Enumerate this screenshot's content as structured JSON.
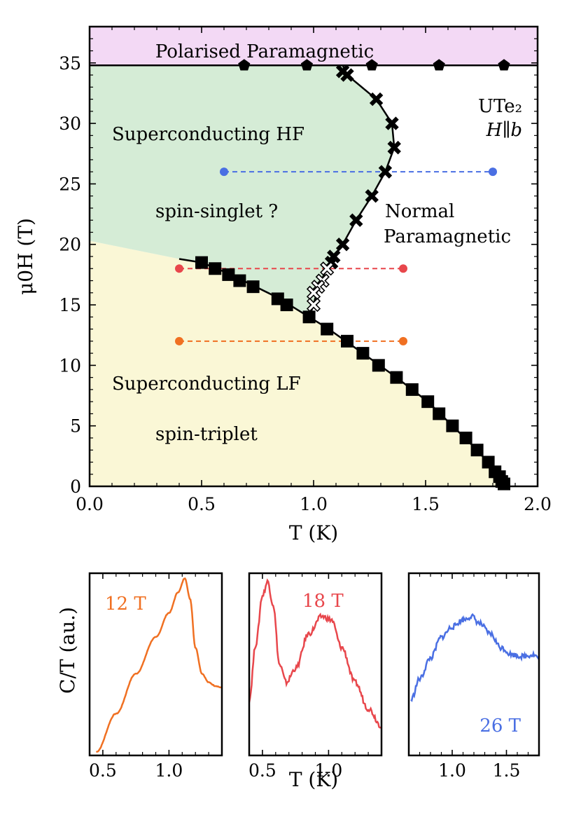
{
  "chart_data": [
    {
      "type": "scatter",
      "title": "",
      "xlabel": "T (K)",
      "ylabel": "μ0H (T)",
      "xlim": [
        0.0,
        2.0
      ],
      "ylim": [
        0,
        38
      ],
      "xticks": [
        "0.0",
        "0.5",
        "1.0",
        "1.5",
        "2.0"
      ],
      "yticks": [
        "0",
        "5",
        "10",
        "15",
        "20",
        "25",
        "30",
        "35"
      ],
      "grid": false,
      "regions": [
        {
          "name": "Polarised Paramagnetic",
          "color": "#f3d9f5"
        },
        {
          "name": "Superconducting HF",
          "color": "#d5ecd6"
        },
        {
          "name": "Superconducting LF",
          "color": "#faf7d6"
        }
      ],
      "annotations": {
        "hf": "Superconducting HF",
        "singlet": "spin-singlet ?",
        "lf": "Superconducting LF",
        "triplet": "spin-triplet",
        "normal1": "Normal",
        "normal2": "Paramagnetic",
        "pp": "Polarised Paramagnetic",
        "compound": "UTe₂",
        "orientation": "H∥b"
      },
      "series": [
        {
          "marker": "square-filled",
          "x": [
            0.5,
            0.56,
            0.62,
            0.67,
            0.73,
            0.84,
            0.88,
            0.98,
            1.06,
            1.15,
            1.22,
            1.29,
            1.37,
            1.44,
            1.51,
            1.56,
            1.62,
            1.68,
            1.73,
            1.78,
            1.81,
            1.83,
            1.84,
            1.85
          ],
          "y": [
            18.5,
            18.0,
            17.5,
            17.0,
            16.5,
            15.5,
            15.0,
            14.0,
            13.0,
            12.0,
            11.0,
            10.0,
            9.0,
            8.0,
            7.0,
            6.0,
            5.0,
            4.0,
            3.0,
            2.0,
            1.2,
            0.8,
            0.4,
            0.2
          ]
        },
        {
          "marker": "x-filled",
          "x": [
            1.13,
            1.15,
            1.28,
            1.35,
            1.36,
            1.32,
            1.26,
            1.19,
            1.13,
            1.09,
            1.08
          ],
          "y": [
            34.3,
            34.0,
            32.0,
            30.0,
            28.0,
            26.0,
            24.0,
            22.0,
            20.0,
            19.0,
            18.5
          ]
        },
        {
          "marker": "x-open",
          "x": [
            1.06,
            1.04,
            1.02,
            1.0,
            1.0
          ],
          "y": [
            18.0,
            17.0,
            16.5,
            16.0,
            15.0
          ]
        },
        {
          "marker": "pentagon-filled",
          "x": [
            0.69,
            0.97,
            1.26,
            1.56,
            1.85
          ],
          "y": [
            34.8,
            34.8,
            34.8,
            34.8,
            34.8
          ]
        }
      ],
      "cuts": [
        {
          "field": 26,
          "x": [
            0.6,
            1.8
          ],
          "color": "#4a6fe3"
        },
        {
          "field": 18,
          "x": [
            0.4,
            1.4
          ],
          "color": "#e8474c"
        },
        {
          "field": 12,
          "x": [
            0.4,
            1.4
          ],
          "color": "#f07022"
        }
      ]
    },
    {
      "type": "line",
      "xlabel": "",
      "ylabel": "C/T (au.)",
      "label": "12 T",
      "color": "#f07022",
      "xlim": [
        0.4,
        1.4
      ],
      "xticks": [
        "0.5",
        "1.0"
      ],
      "x": [
        0.45,
        0.6,
        0.75,
        0.9,
        1.0,
        1.07,
        1.12,
        1.16,
        1.2,
        1.25,
        1.3,
        1.35,
        1.4
      ],
      "y": [
        0.0,
        0.22,
        0.45,
        0.66,
        0.8,
        0.92,
        1.0,
        0.88,
        0.6,
        0.45,
        0.4,
        0.38,
        0.37
      ]
    },
    {
      "type": "line",
      "xlabel": "T (K)",
      "ylabel": "",
      "label": "18 T",
      "color": "#e8474c",
      "xlim": [
        0.4,
        1.4
      ],
      "xticks": [
        "0.5",
        "1.0"
      ],
      "x": [
        0.4,
        0.45,
        0.5,
        0.54,
        0.58,
        0.63,
        0.68,
        0.75,
        0.85,
        0.95,
        1.02,
        1.1,
        1.2,
        1.3,
        1.4
      ],
      "y": [
        0.3,
        0.62,
        0.9,
        0.98,
        0.85,
        0.5,
        0.4,
        0.48,
        0.68,
        0.78,
        0.76,
        0.6,
        0.4,
        0.25,
        0.15
      ]
    },
    {
      "type": "line",
      "xlabel": "",
      "ylabel": "",
      "label": "26 T",
      "color": "#4a6fe3",
      "xlim": [
        0.6,
        1.8
      ],
      "xticks": [
        "1.0",
        "1.5"
      ],
      "x": [
        0.62,
        0.7,
        0.8,
        0.9,
        1.0,
        1.1,
        1.18,
        1.25,
        1.35,
        1.45,
        1.55,
        1.65,
        1.75,
        1.8
      ],
      "y": [
        0.3,
        0.42,
        0.54,
        0.66,
        0.72,
        0.76,
        0.78,
        0.74,
        0.68,
        0.6,
        0.56,
        0.55,
        0.56,
        0.54
      ]
    }
  ]
}
